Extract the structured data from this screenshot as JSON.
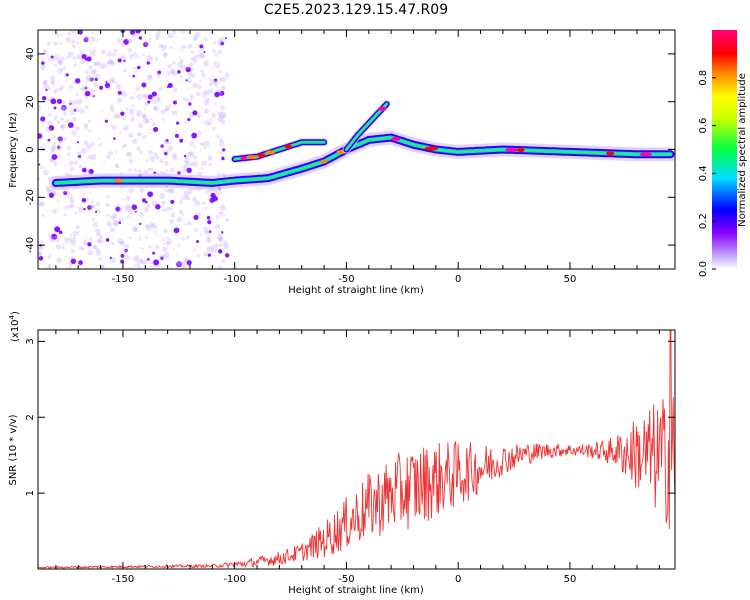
{
  "title": "C2E5.2023.129.15.47.R09",
  "chart_data": [
    {
      "type": "heatmap",
      "xlabel": "Height of straight line (km)",
      "ylabel": "Frequency (Hz)",
      "xlim": [
        -188,
        97
      ],
      "ylim": [
        -50,
        50
      ],
      "xticks": [
        -150,
        -100,
        -50,
        0,
        50
      ],
      "yticks": [
        -40,
        -20,
        0,
        20,
        40
      ],
      "colorbar": {
        "label": "Normalized spectral amplitude",
        "range": [
          0,
          1
        ],
        "ticks": [
          "0.0",
          "0.2",
          "0.4",
          "0.6",
          "0.8"
        ],
        "colors": [
          "#ffffff",
          "#8800ff",
          "#0000ff",
          "#00ffff",
          "#00ff00",
          "#ffff00",
          "#ff8800",
          "#ff0000",
          "#ff00aa"
        ]
      },
      "ridges": [
        {
          "name": "lower",
          "points": [
            [
              -180,
              -14
            ],
            [
              -160,
              -13
            ],
            [
              -130,
              -13
            ],
            [
              -110,
              -14
            ],
            [
              -100,
              -13
            ],
            [
              -85,
              -12
            ],
            [
              -70,
              -8
            ],
            [
              -60,
              -5
            ],
            [
              -50,
              0
            ],
            [
              -40,
              4
            ],
            [
              -30,
              5
            ],
            [
              -20,
              2
            ],
            [
              -10,
              0
            ],
            [
              0,
              -1
            ],
            [
              20,
              0
            ],
            [
              50,
              -1
            ],
            [
              80,
              -2
            ],
            [
              95,
              -2
            ]
          ]
        },
        {
          "name": "upper",
          "points": [
            [
              -100,
              -4
            ],
            [
              -90,
              -3
            ],
            [
              -80,
              0
            ],
            [
              -70,
              3
            ],
            [
              -60,
              3
            ]
          ]
        },
        {
          "name": "rise",
          "points": [
            [
              -50,
              0
            ],
            [
              -45,
              6
            ],
            [
              -40,
              11
            ],
            [
              -35,
              16
            ],
            [
              -32,
              19
            ]
          ]
        }
      ]
    },
    {
      "type": "line",
      "xlabel": "Height of straight line (km)",
      "ylabel": "SNR (10 * v/v)",
      "multiplier": "(x10",
      "multiplier_exp": "4",
      "multiplier_close": ")",
      "color": "#ee3333",
      "xlim": [
        -188,
        97
      ],
      "ylim": [
        0,
        3.15
      ],
      "xticks": [
        -150,
        -100,
        -50,
        0,
        50
      ],
      "yticks": [
        1,
        2,
        3
      ],
      "envelope": [
        [
          -188,
          0.02
        ],
        [
          -150,
          0.03
        ],
        [
          -110,
          0.04
        ],
        [
          -95,
          0.07
        ],
        [
          -80,
          0.14
        ],
        [
          -70,
          0.22
        ],
        [
          -60,
          0.38
        ],
        [
          -50,
          0.6
        ],
        [
          -40,
          0.82
        ],
        [
          -30,
          0.98
        ],
        [
          -20,
          1.08
        ],
        [
          -10,
          1.18
        ],
        [
          0,
          1.25
        ],
        [
          10,
          1.33
        ],
        [
          20,
          1.44
        ],
        [
          30,
          1.52
        ],
        [
          40,
          1.56
        ],
        [
          50,
          1.57
        ],
        [
          60,
          1.56
        ],
        [
          70,
          1.55
        ],
        [
          80,
          1.52
        ],
        [
          97,
          1.42
        ]
      ],
      "noise": [
        [
          -188,
          0.01
        ],
        [
          -110,
          0.02
        ],
        [
          -95,
          0.05
        ],
        [
          -70,
          0.12
        ],
        [
          -55,
          0.3
        ],
        [
          -40,
          0.45
        ],
        [
          -20,
          0.55
        ],
        [
          0,
          0.45
        ],
        [
          20,
          0.2
        ],
        [
          40,
          0.1
        ],
        [
          50,
          0.08
        ],
        [
          60,
          0.1
        ],
        [
          70,
          0.2
        ],
        [
          80,
          0.5
        ],
        [
          90,
          0.8
        ],
        [
          97,
          1.0
        ]
      ],
      "peak": {
        "x": 95,
        "y": 3.15
      }
    }
  ]
}
